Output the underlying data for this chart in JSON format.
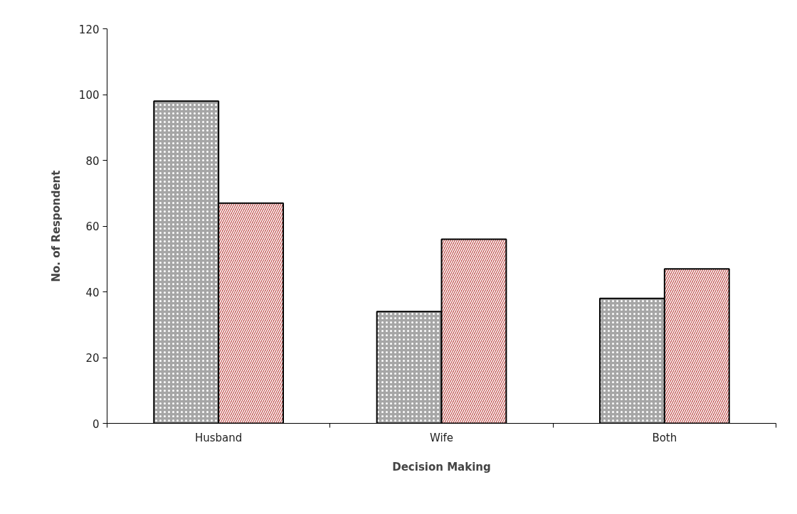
{
  "chart_data": {
    "type": "bar",
    "xlabel": "Decision Making",
    "ylabel": "No. of Respondent",
    "categories": [
      "Husband",
      "Wife",
      "Both"
    ],
    "series": [
      {
        "color": "#a6a6a6",
        "values": [
          98,
          34,
          38
        ]
      },
      {
        "color": "#c0504d",
        "values": [
          67,
          56,
          47
        ]
      }
    ],
    "ylim": [
      0,
      120
    ],
    "yticks": [
      0,
      20,
      40,
      60,
      80,
      100,
      120
    ],
    "grid": false
  }
}
